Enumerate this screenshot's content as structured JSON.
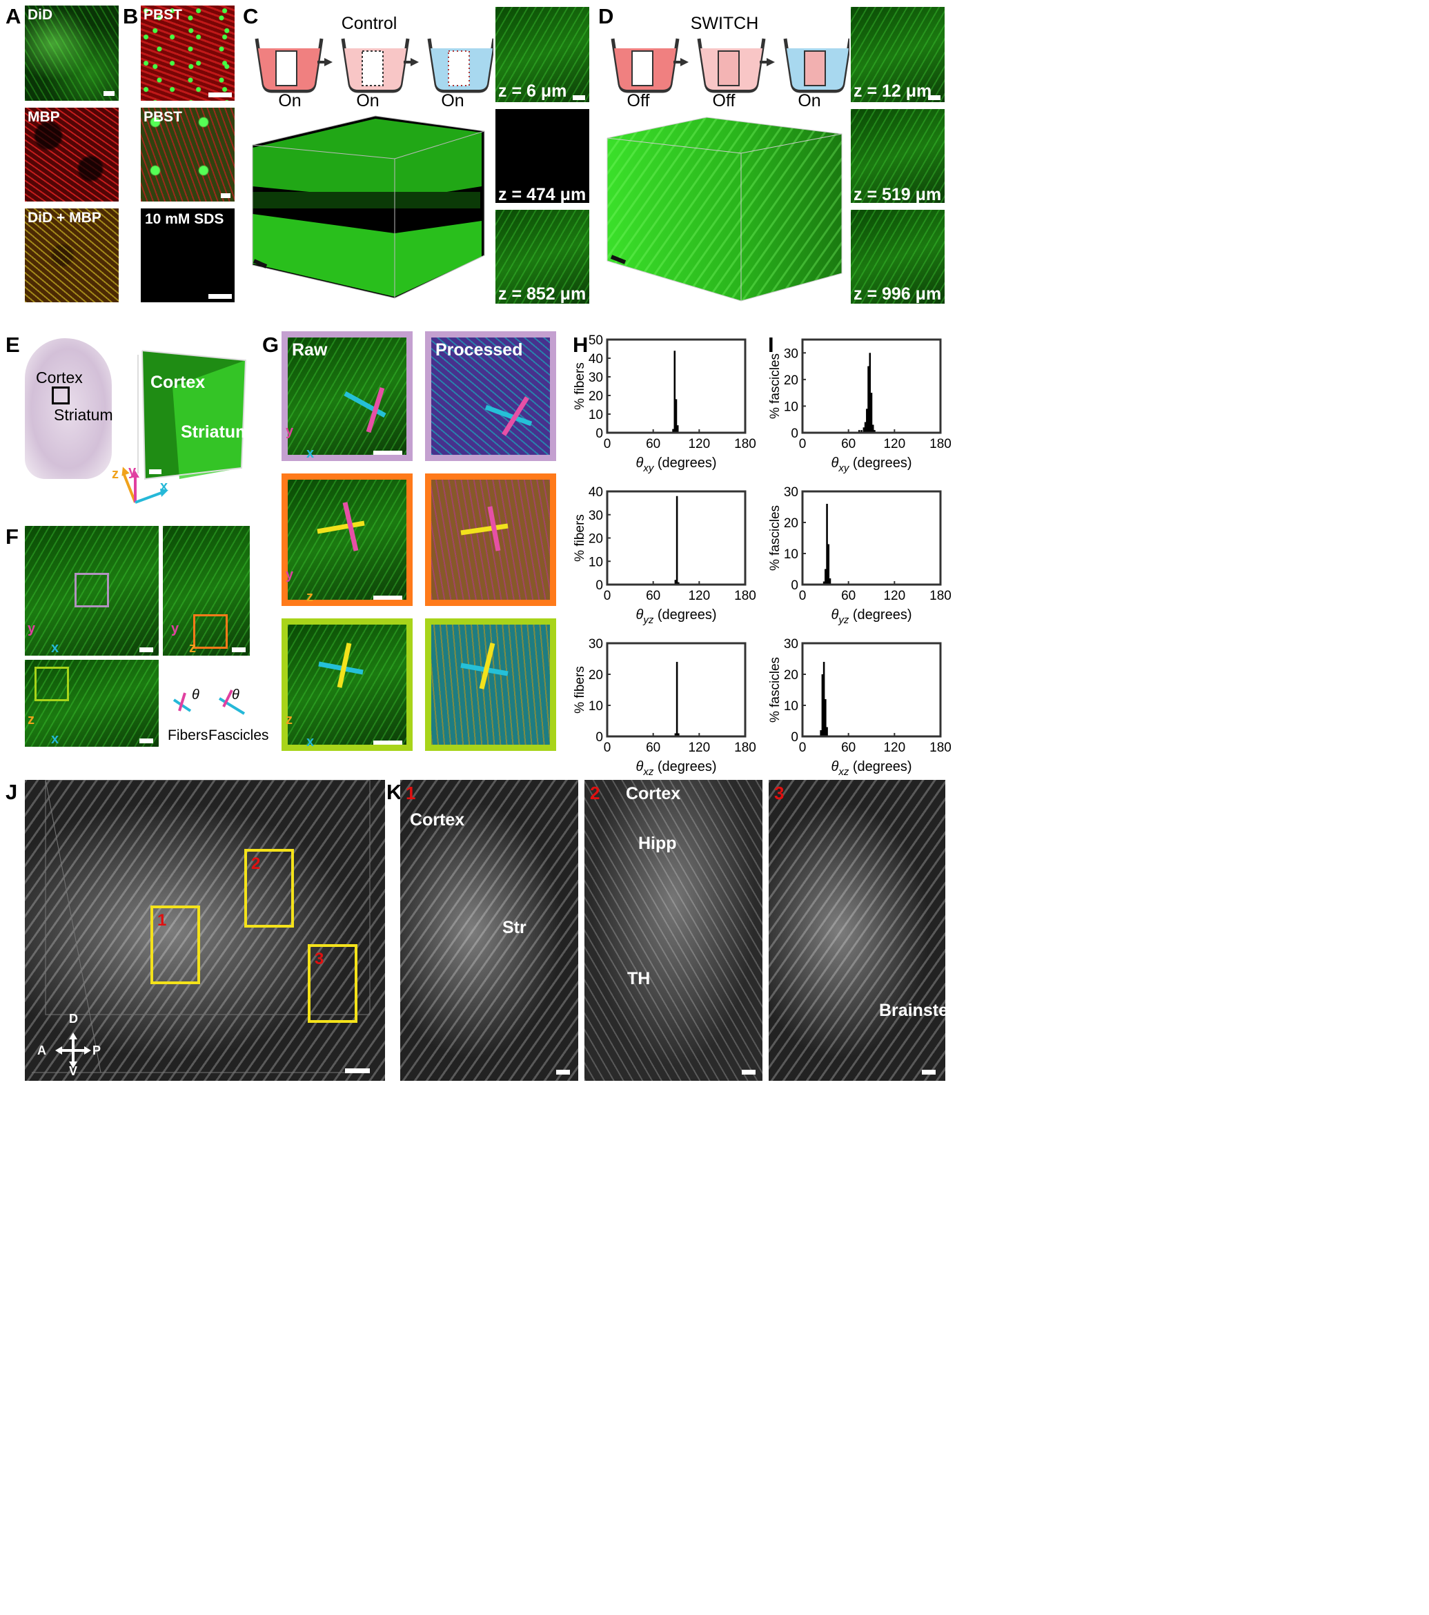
{
  "panels": {
    "A": "A",
    "B": "B",
    "C": "C",
    "D": "D",
    "E": "E",
    "F": "F",
    "G": "G",
    "H": "H",
    "I": "I",
    "J": "J",
    "K": "K"
  },
  "panelA": {
    "labels": [
      "DiD",
      "MBP",
      "DiD + MBP"
    ]
  },
  "panelB": {
    "labels": [
      "PBST",
      "PBST",
      "10 mM SDS"
    ]
  },
  "panelC": {
    "title": "Control",
    "states": [
      "On",
      "On",
      "On"
    ],
    "slices": [
      "z = 6 μm",
      "z = 474 μm",
      "z = 852 μm"
    ]
  },
  "panelD": {
    "title": "SWITCH",
    "states": [
      "Off",
      "Off",
      "On"
    ],
    "slices": [
      "z = 12 μm",
      "z = 519 μm",
      "z = 996 μm"
    ]
  },
  "panelE": {
    "left": [
      "Cortex",
      "Striatum"
    ],
    "right": [
      "Cortex",
      "Striatum"
    ],
    "axes": [
      "z",
      "y",
      "x"
    ]
  },
  "panelF": {
    "axes1": [
      "y",
      "x"
    ],
    "axes2": [
      "y",
      "z"
    ],
    "axes3": [
      "z",
      "x"
    ],
    "theta": "θ",
    "legend": [
      "Fibers",
      "Fascicles"
    ]
  },
  "panelG": {
    "raw": "Raw",
    "processed": "Processed",
    "axes1": [
      "y",
      "x"
    ],
    "axes2": [
      "y",
      "z"
    ],
    "axes3": [
      "z",
      "x"
    ]
  },
  "panelK": {
    "n1": "1",
    "n2": "2",
    "n3": "3",
    "k1": [
      "Cortex",
      "Str"
    ],
    "k2": [
      "Cortex",
      "Hipp",
      "TH"
    ],
    "k3": [
      "Brainstem"
    ]
  },
  "panelJ": {
    "boxes": [
      "1",
      "2",
      "3"
    ],
    "compass": {
      "D": "D",
      "A": "A",
      "P": "P",
      "V": "V"
    }
  },
  "chart_data": [
    {
      "type": "bar",
      "panel": "H",
      "ylabel": "% fibers",
      "xlabel": "θxy (degrees)",
      "xsub": "xy",
      "ylim": [
        0,
        50
      ],
      "yticks": [
        0,
        10,
        20,
        30,
        40,
        50
      ],
      "xlim": [
        0,
        180
      ],
      "xticks": [
        0,
        60,
        120,
        180
      ],
      "bins": [
        [
          86,
          2
        ],
        [
          88,
          44
        ],
        [
          90,
          18
        ],
        [
          92,
          4
        ]
      ]
    },
    {
      "type": "bar",
      "panel": "H",
      "ylabel": "% fibers",
      "xlabel": "θyz (degrees)",
      "xsub": "yz",
      "ylim": [
        0,
        40
      ],
      "yticks": [
        0,
        10,
        20,
        30,
        40
      ],
      "xlim": [
        0,
        180
      ],
      "xticks": [
        0,
        60,
        120,
        180
      ],
      "bins": [
        [
          89,
          2
        ],
        [
          91,
          38
        ],
        [
          93,
          1
        ]
      ]
    },
    {
      "type": "bar",
      "panel": "H",
      "ylabel": "% fibers",
      "xlabel": "θxz (degrees)",
      "xsub": "xz",
      "ylim": [
        0,
        30
      ],
      "yticks": [
        0,
        10,
        20,
        30
      ],
      "xlim": [
        0,
        180
      ],
      "xticks": [
        0,
        60,
        120,
        180
      ],
      "bins": [
        [
          89,
          1
        ],
        [
          91,
          24
        ],
        [
          93,
          1
        ]
      ]
    },
    {
      "type": "bar",
      "panel": "I",
      "ylabel": "% fascicles",
      "xlabel": "θxy (degrees)",
      "xsub": "xy",
      "ylim": [
        0,
        35
      ],
      "yticks": [
        0,
        10,
        20,
        30
      ],
      "xlim": [
        0,
        180
      ],
      "xticks": [
        0,
        60,
        120,
        180
      ],
      "bins": [
        [
          74,
          1
        ],
        [
          77,
          1
        ],
        [
          80,
          2
        ],
        [
          82,
          4
        ],
        [
          84,
          9
        ],
        [
          86,
          25
        ],
        [
          88,
          30
        ],
        [
          90,
          15
        ],
        [
          92,
          3
        ],
        [
          94,
          1
        ]
      ]
    },
    {
      "type": "bar",
      "panel": "I",
      "ylabel": "% fascicles",
      "xlabel": "θyz (degrees)",
      "xsub": "yz",
      "ylim": [
        0,
        30
      ],
      "yticks": [
        0,
        10,
        20,
        30
      ],
      "xlim": [
        0,
        180
      ],
      "xticks": [
        0,
        60,
        120,
        180
      ],
      "bins": [
        [
          28,
          1
        ],
        [
          30,
          5
        ],
        [
          32,
          26
        ],
        [
          34,
          13
        ],
        [
          36,
          2
        ]
      ]
    },
    {
      "type": "bar",
      "panel": "I",
      "ylabel": "% fascicles",
      "xlabel": "θxz (degrees)",
      "xsub": "xz",
      "ylim": [
        0,
        30
      ],
      "yticks": [
        0,
        10,
        20,
        30
      ],
      "xlim": [
        0,
        180
      ],
      "xticks": [
        0,
        60,
        120,
        180
      ],
      "bins": [
        [
          24,
          2
        ],
        [
          26,
          20
        ],
        [
          28,
          24
        ],
        [
          30,
          12
        ],
        [
          32,
          3
        ]
      ]
    }
  ]
}
